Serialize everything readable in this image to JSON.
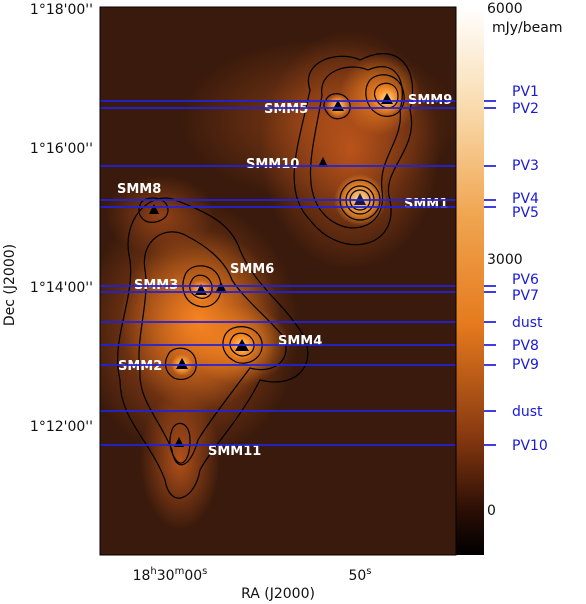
{
  "figure": {
    "y_axis": {
      "label": "Dec (J2000)",
      "ticks": [
        "1°18'00''",
        "1°16'00''",
        "1°14'00''",
        "1°12'00''"
      ]
    },
    "x_axis": {
      "label": "RA (J2000)",
      "ticks": [
        {
          "base": "18",
          "h": "h",
          "min": "30",
          "m": "m",
          "sec": "00",
          "s": "s"
        },
        {
          "base": "50",
          "s": "s"
        }
      ]
    },
    "colorbar": {
      "unit": "mJy/beam",
      "ticks": [
        "6000",
        "3000",
        "0"
      ],
      "colors": [
        "#ffffff",
        "#f6c98a",
        "#ec8a26",
        "#9a4a16",
        "#3a1608",
        "#000000"
      ]
    },
    "sources": [
      {
        "name": "SMM1"
      },
      {
        "name": "SMM2"
      },
      {
        "name": "SMM3"
      },
      {
        "name": "SMM4"
      },
      {
        "name": "SMM5"
      },
      {
        "name": "SMM6"
      },
      {
        "name": "SMM8"
      },
      {
        "name": "SMM9"
      },
      {
        "name": "SMM10"
      },
      {
        "name": "SMM11"
      }
    ],
    "cuts": [
      "PV1",
      "PV2",
      "PV3",
      "PV4",
      "PV5",
      "PV6",
      "PV7",
      "dust",
      "PV8",
      "PV9",
      "dust",
      "PV10"
    ],
    "line_color": "#2222dd"
  }
}
